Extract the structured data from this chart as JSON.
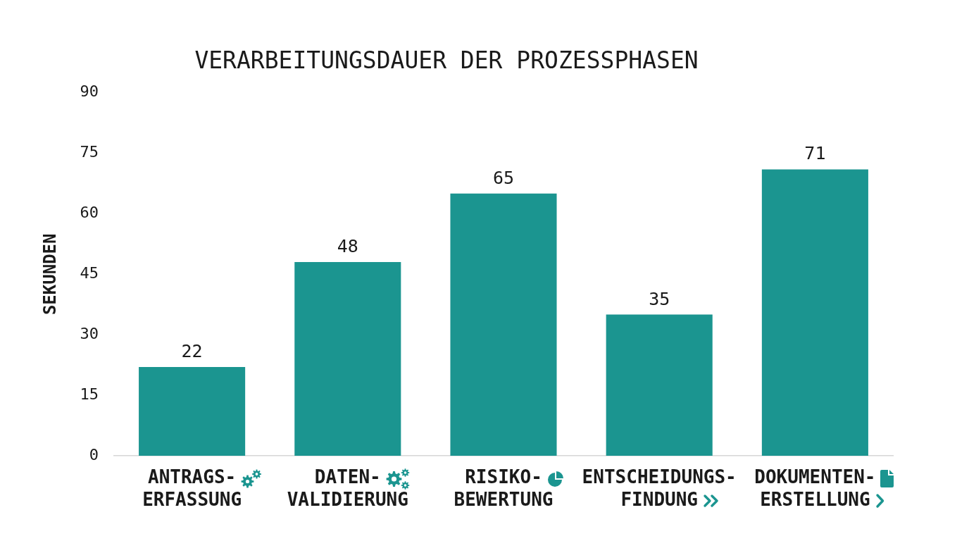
{
  "chart_data": {
    "type": "bar",
    "title": "VERARBEITUNGSDAUER DER PROZESSPHASEN",
    "ylabel": "SEKUNDEN",
    "categories": [
      "ANTRAGS-\nERFASSUNG",
      "DATEN-\nVALIDIERUNG",
      "RISIKO-\nBEWERTUNG",
      "ENTSCHEIDUNGS-\nFINDUNG",
      "DOKUMENTEN-\nERSTELLUNG"
    ],
    "values": [
      22,
      48,
      65,
      35,
      71
    ],
    "color": "#1b9590",
    "ylim": [
      0,
      90
    ],
    "yticks": [
      0,
      15,
      30,
      45,
      60,
      75,
      90
    ],
    "grid": false,
    "legend": false,
    "data_labels": true
  }
}
